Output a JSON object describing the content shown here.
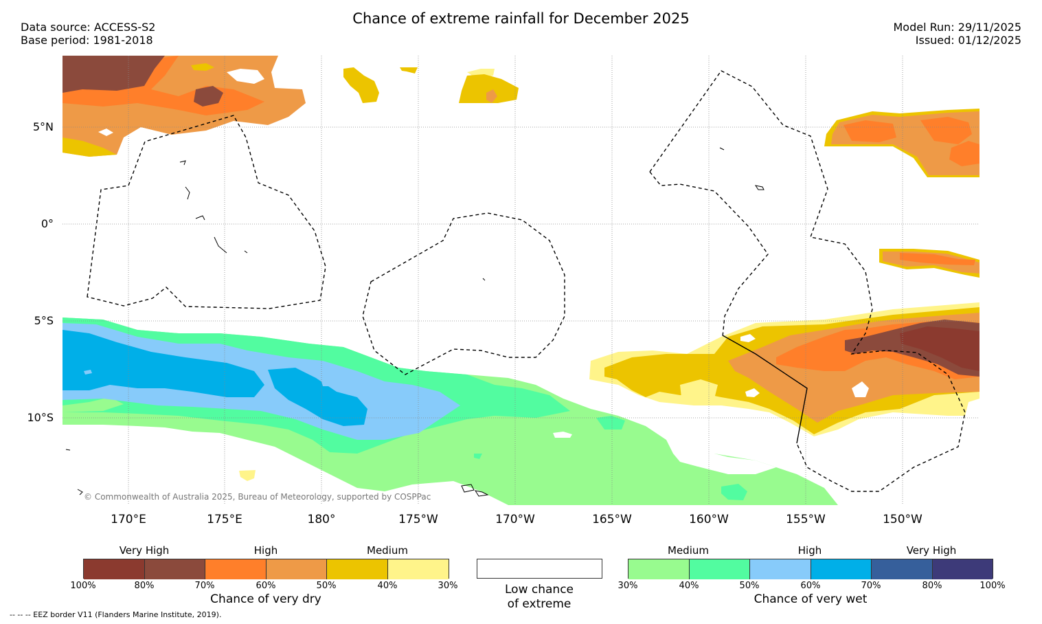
{
  "title": "Chance of extreme rainfall for December 2025",
  "header": {
    "data_source": "Data source: ACCESS-S2",
    "base_period": "Base period: 1981-2018",
    "model_run": "Model Run: 29/11/2025",
    "issued": "Issued: 01/12/2025"
  },
  "map": {
    "lat_labels": [
      "5°N",
      "0°",
      "5°S",
      "10°S"
    ],
    "lon_labels": [
      "170°E",
      "175°E",
      "180°",
      "175°W",
      "170°W",
      "165°W",
      "160°W",
      "155°W",
      "150°W"
    ],
    "copyright": "© Commonwealth of Australia 2025, Bureau of Meteorology, supported by COSPPac"
  },
  "legend": {
    "dry": {
      "top_labels": [
        "Very High",
        "High",
        "Medium"
      ],
      "ticks": [
        "100%",
        "80%",
        "70%",
        "60%",
        "50%",
        "40%",
        "30%"
      ],
      "colors": [
        "#8b3a2f",
        "#8b4a3c",
        "#ff7f2a",
        "#ee9a47",
        "#ecc400",
        "#fff48a"
      ],
      "caption": "Chance of very dry"
    },
    "neutral": {
      "line1": "Low chance",
      "line2": "of extreme",
      "color": "#ffffff"
    },
    "wet": {
      "top_labels": [
        "Medium",
        "High",
        "Very High"
      ],
      "ticks": [
        "30%",
        "40%",
        "50%",
        "60%",
        "70%",
        "80%",
        "100%"
      ],
      "colors": [
        "#98fb8f",
        "#52fca0",
        "#87cbfa",
        "#00afe8",
        "#365f9b",
        "#3d3a79"
      ],
      "caption": "Chance of very wet"
    }
  },
  "footer": {
    "eez_note": "--  --  -- EEZ border V11 (Flanders Marine Institute, 2019)."
  }
}
